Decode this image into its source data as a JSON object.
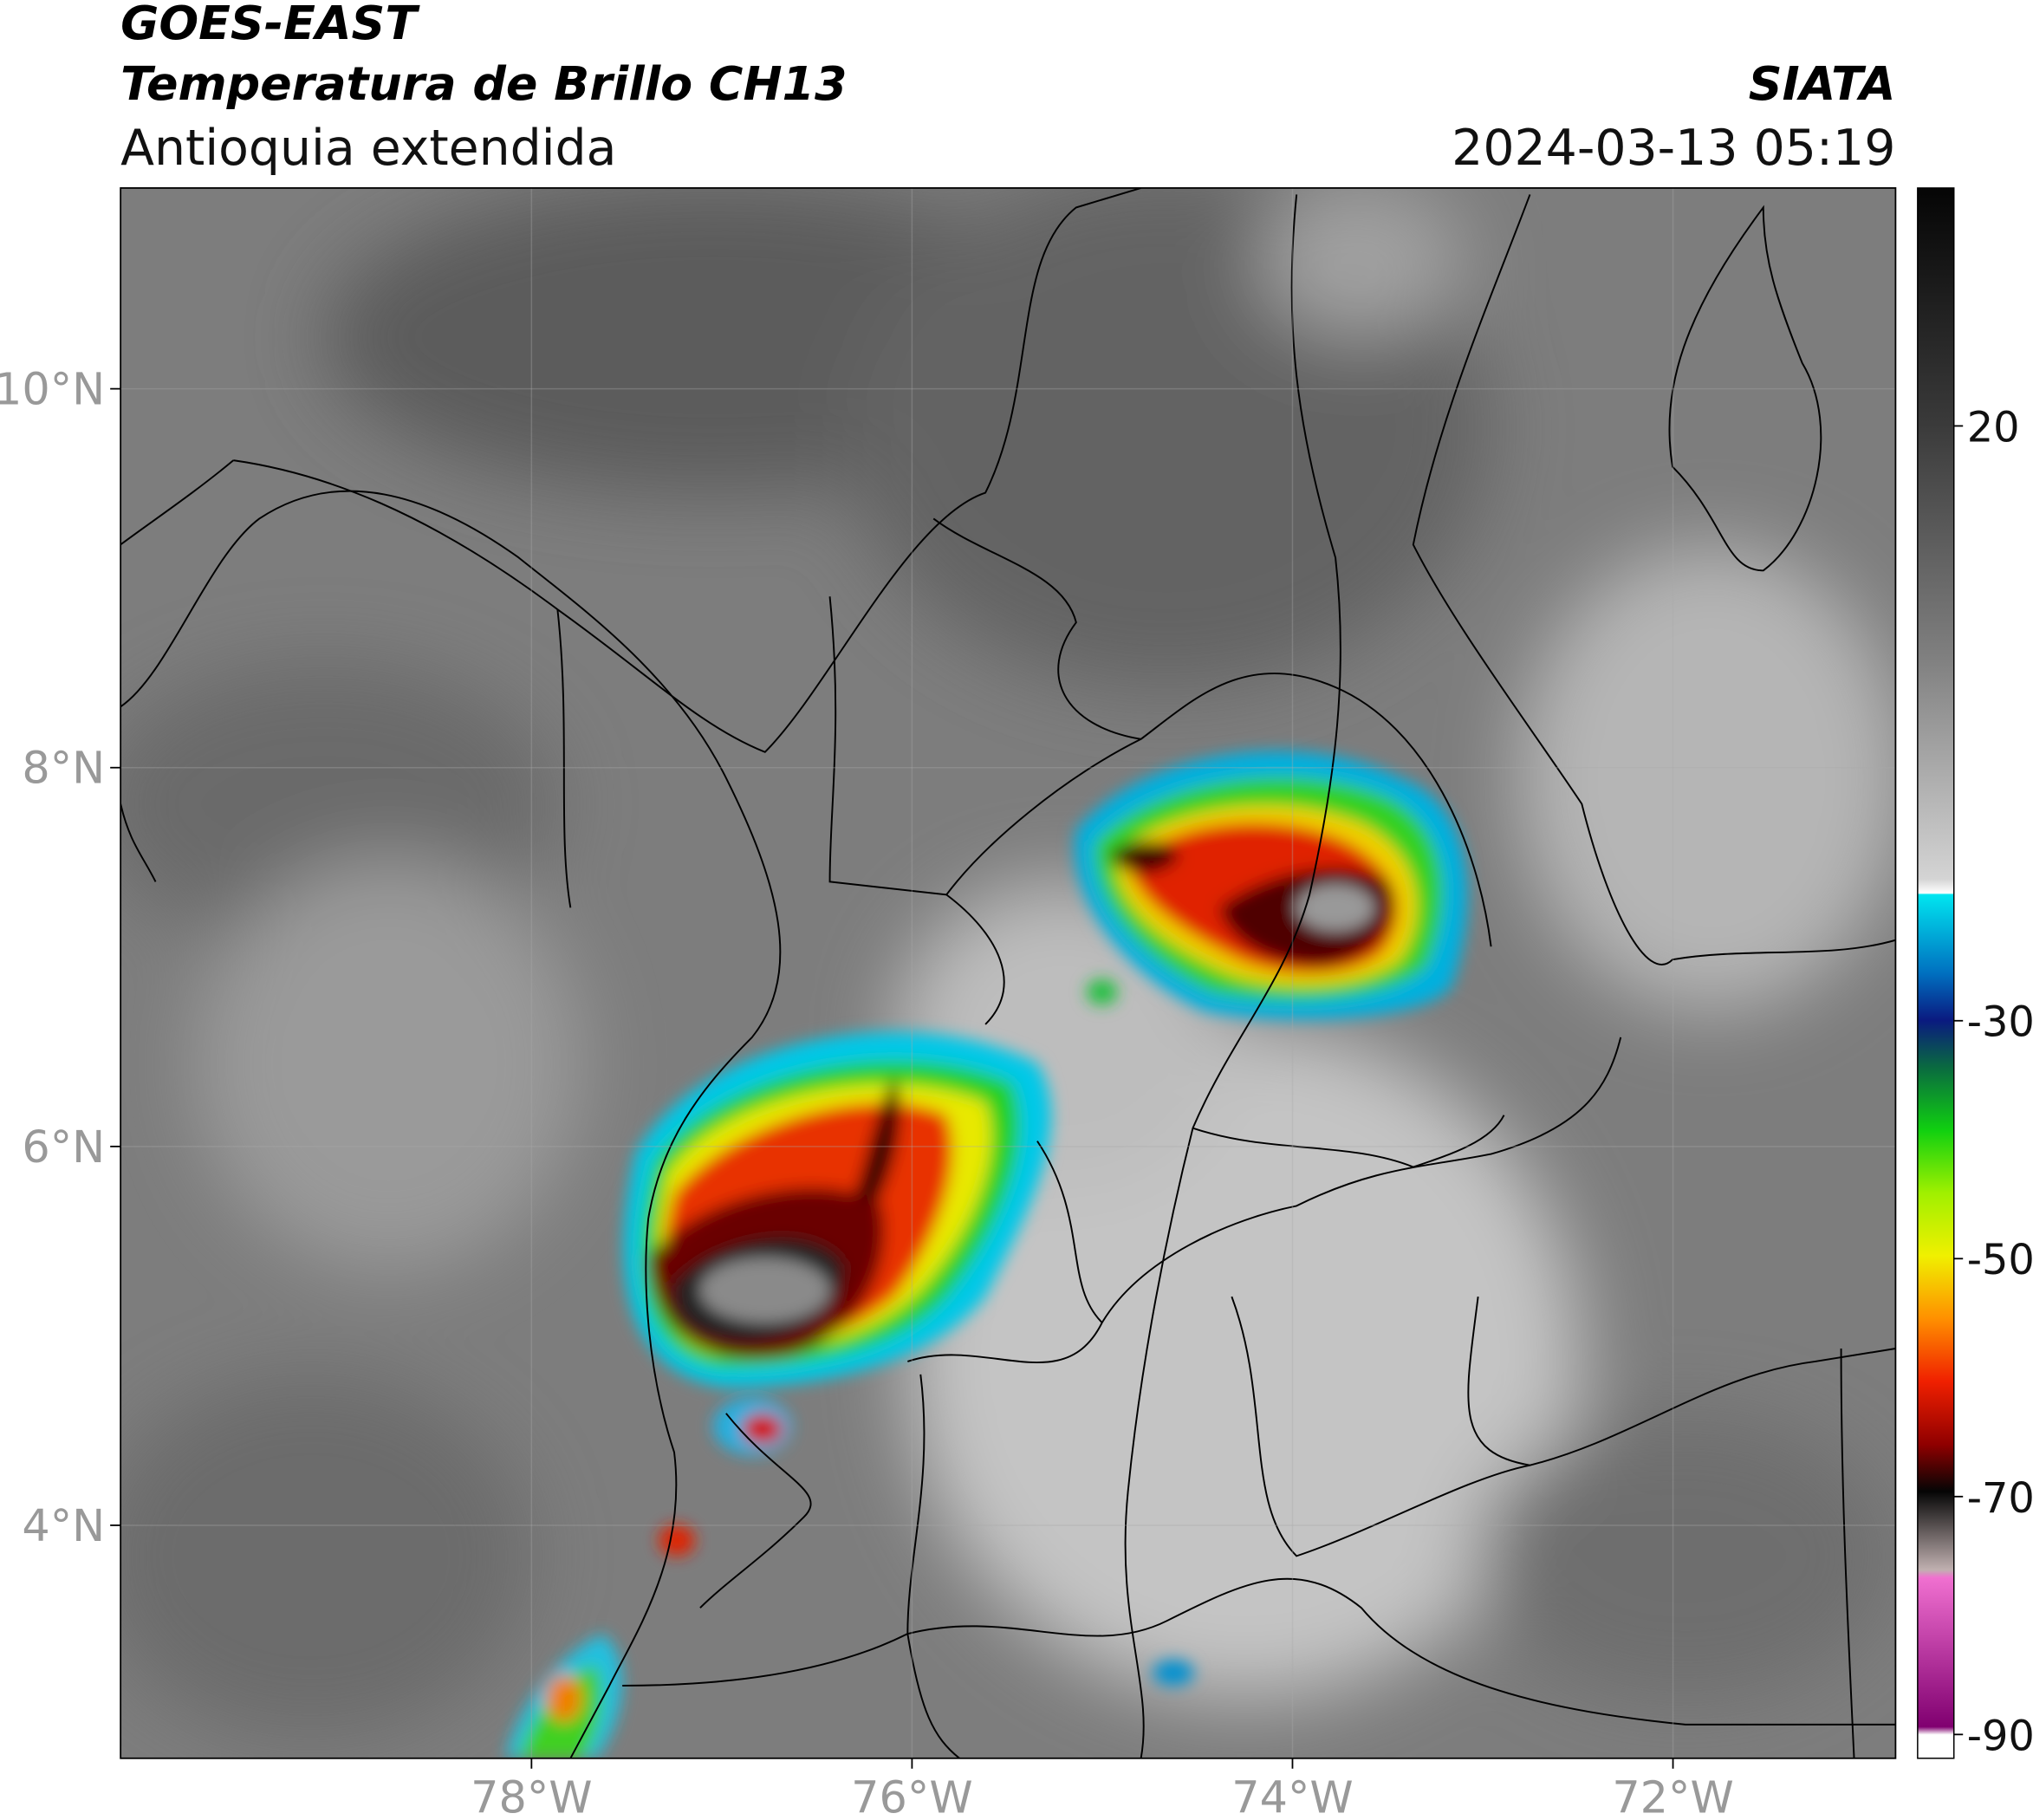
{
  "header": {
    "line1": "GOES-EAST",
    "line2": "Temperatura de Brillo CH13",
    "line3": "Antioquia extendida",
    "source": "SIATA",
    "datetime": "2024-03-13 05:19"
  },
  "map": {
    "lonlim": [
      -80.16,
      -70.83
    ],
    "latlim": [
      2.77,
      11.06
    ],
    "lat_ticks": [
      {
        "value": 10,
        "label": "10°N"
      },
      {
        "value": 8,
        "label": "8°N"
      },
      {
        "value": 6,
        "label": "6°N"
      },
      {
        "value": 4,
        "label": "4°N"
      }
    ],
    "lon_ticks": [
      {
        "value": -78,
        "label": "78°W"
      },
      {
        "value": -76,
        "label": "76°W"
      },
      {
        "value": -74,
        "label": "74°W"
      },
      {
        "value": -72,
        "label": "72°W"
      }
    ],
    "grid": true
  },
  "colorbar": {
    "lim": [
      -92,
      40
    ],
    "ticks": [
      20,
      -30,
      -50,
      -70,
      -90
    ]
  }
}
